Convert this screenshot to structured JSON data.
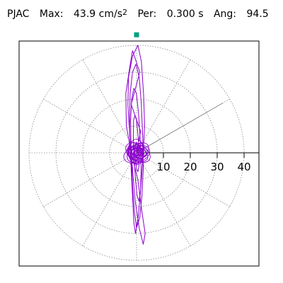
{
  "header": {
    "station": "PJAC",
    "max_label": "Max:",
    "max_value": "43.9 cm/s",
    "max_unit_exp": "2",
    "per_label": "Per:",
    "per_value": "0.300 s",
    "ang_label": "Ang:",
    "ang_value": "94.5"
  },
  "chart_data": {
    "type": "scatter",
    "description_units": "cm/s^2",
    "title": "PJAC  Max: 43.9 cm/s2  Per: 0.300 s  Ang: 94.5",
    "radial_ticks": [
      10,
      20,
      30,
      40
    ],
    "radial_range": [
      0,
      45
    ],
    "rings": [
      10,
      20,
      30,
      40
    ],
    "spokes_deg": [
      0,
      30,
      60,
      90,
      120,
      150,
      180,
      210,
      240,
      270,
      300,
      330
    ],
    "grid": true,
    "max_direction_deg": 30,
    "max_marker": {
      "x": 0.0,
      "y": 43.9
    },
    "trajectory_color": "#8B00CC",
    "marker_color": "#00A080",
    "trajectory_points": [
      [
        0,
        0
      ],
      [
        1.5,
        8
      ],
      [
        -2,
        18
      ],
      [
        1.2,
        30
      ],
      [
        -1.5,
        38
      ],
      [
        -2.5,
        32
      ],
      [
        -4,
        22
      ],
      [
        -3.8,
        10
      ],
      [
        -2,
        0
      ],
      [
        0.5,
        -10
      ],
      [
        2,
        -22
      ],
      [
        3.2,
        -30
      ],
      [
        2.5,
        -34
      ],
      [
        1,
        -28
      ],
      [
        -0.5,
        -18
      ],
      [
        -1.5,
        -6
      ],
      [
        -2.5,
        6
      ],
      [
        -3.2,
        18
      ],
      [
        -3,
        28
      ],
      [
        -1.5,
        36
      ],
      [
        0.5,
        40
      ],
      [
        1.8,
        34
      ],
      [
        2.6,
        22
      ],
      [
        3,
        10
      ],
      [
        2.4,
        -2
      ],
      [
        1.5,
        -14
      ],
      [
        0.6,
        -24
      ],
      [
        -0.4,
        -30
      ],
      [
        -1,
        -26
      ],
      [
        -1.6,
        -14
      ],
      [
        -2.2,
        -2
      ],
      [
        -2.6,
        10
      ],
      [
        -2.4,
        22
      ],
      [
        -1.5,
        30
      ],
      [
        -0.2,
        33
      ],
      [
        1,
        28
      ],
      [
        1.8,
        18
      ],
      [
        2.3,
        6
      ],
      [
        2.5,
        -6
      ],
      [
        2,
        -16
      ],
      [
        1.2,
        -24
      ],
      [
        0,
        -28
      ],
      [
        -0.8,
        -22
      ],
      [
        -1.5,
        -12
      ],
      [
        -2,
        0
      ],
      [
        -2.2,
        12
      ],
      [
        -1.8,
        20
      ],
      [
        -1,
        24
      ],
      [
        0,
        22
      ],
      [
        0.8,
        14
      ],
      [
        1.4,
        4
      ],
      [
        1.7,
        -6
      ],
      [
        1.5,
        -14
      ],
      [
        0.9,
        -18
      ],
      [
        0.2,
        -16
      ],
      [
        -0.4,
        -10
      ],
      [
        -0.9,
        -2
      ],
      [
        -1.2,
        6
      ],
      [
        -1.1,
        12
      ],
      [
        -0.6,
        14
      ],
      [
        0,
        12
      ],
      [
        0.6,
        6
      ],
      [
        0.9,
        0
      ],
      [
        0.9,
        -5
      ],
      [
        0.5,
        -7
      ],
      [
        0,
        -6
      ],
      [
        -0.4,
        -3
      ],
      [
        -0.6,
        0
      ],
      [
        -0.4,
        3
      ],
      [
        0,
        4
      ],
      [
        0.4,
        3
      ],
      [
        0.5,
        1
      ],
      [
        0.3,
        -1
      ],
      [
        0,
        -1.5
      ],
      [
        -0.2,
        -0.5
      ],
      [
        0,
        0
      ]
    ],
    "dense_cluster": {
      "center": [
        0,
        0
      ],
      "radius": 6
    }
  }
}
